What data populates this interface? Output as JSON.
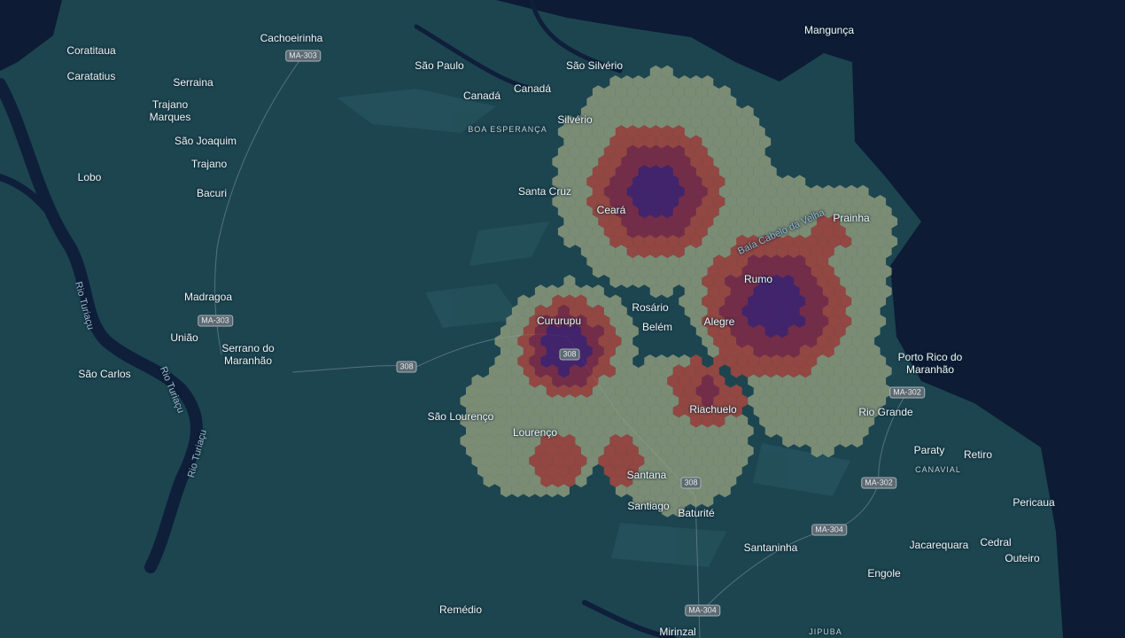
{
  "places": [
    "Coratitaua",
    "Caratatius",
    "Cachoeirinha",
    "São Paulo",
    "São Silvério",
    "Mangunça",
    "Serraina",
    "Trajano Marques",
    "Canadá",
    "Canadá",
    "Silvério",
    "São Joaquim",
    "Trajano",
    "Lobo",
    "Bacuri",
    "Santa Cruz",
    "Ceará",
    "Prainha",
    "Madragoa",
    "Rumo",
    "Rosário",
    "Cururupu",
    "Belém",
    "Alegre",
    "União",
    "Serrano do Maranhão",
    "Porto Rico do Maranhão",
    "São Carlos",
    "Riachuelo",
    "Rio Grande",
    "São Lourenço",
    "Lourenço",
    "Paraty",
    "Retiro",
    "Santana",
    "Santiago",
    "Baturité",
    "Pericaua",
    "Cedral",
    "Santaninha",
    "Jacarequara",
    "Outeiro",
    "Engole",
    "Remédio",
    "Mirinzal"
  ],
  "districts": [
    "BOA ESPERANÇA",
    "CANAVIAL",
    "JIPUBA"
  ],
  "roads": [
    "MA-303",
    "MA-303",
    "308",
    "308",
    "MA-302",
    "MA-302",
    "308",
    "MA-304",
    "MA-304"
  ],
  "water_labels": [
    "Rio Turiaçu",
    "Rio Turiaçu",
    "Rio Turiaçu",
    "Baía Cabelo da Velha"
  ]
}
